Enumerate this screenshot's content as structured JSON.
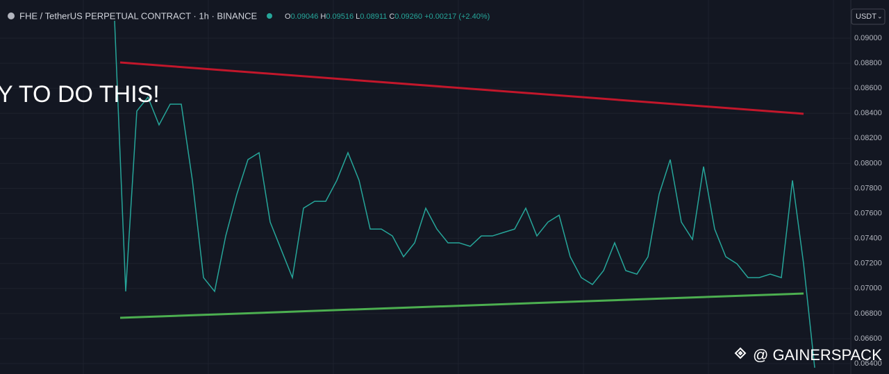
{
  "chart_data": {
    "type": "line",
    "title": "FHE / TetherUS PERPETUAL CONTRACT · 1h · BINANCE",
    "ohlc": {
      "o_label": "O",
      "o": "0.09046",
      "h_label": "H",
      "h": "0.09516",
      "l_label": "L",
      "l": "0.08911",
      "c_label": "C",
      "c": "0.09260",
      "change": "+0.00217 (+2.40%)"
    },
    "currency": "USDT",
    "overlay_text": "Y TO DO THIS!",
    "watermark": "@ GAINERSPACK",
    "categories": [
      null,
      null,
      null,
      null,
      null,
      null,
      null,
      null,
      null,
      null,
      null,
      null,
      null,
      null,
      null,
      null,
      null,
      null,
      null,
      null,
      null,
      null,
      null,
      null,
      null,
      null,
      null,
      null,
      null,
      null,
      null,
      null,
      null,
      null,
      null,
      null,
      null,
      null,
      null,
      null,
      null,
      null,
      null,
      null,
      null,
      null,
      null,
      null,
      null,
      null,
      null,
      null,
      null,
      null,
      null,
      null,
      null,
      null,
      null,
      null,
      null,
      null,
      null,
      null
    ],
    "series": [
      {
        "color": "#26a69a",
        "values": [
          0.09139,
          0.06977,
          0.08418,
          0.08529,
          0.08307,
          0.08473,
          0.08473,
          0.07864,
          0.07087,
          0.06977,
          0.0742,
          0.07753,
          0.0803,
          0.08085,
          0.07531,
          0.07309,
          0.07087,
          0.07642,
          0.07697,
          0.07697,
          0.07864,
          0.08085,
          0.07864,
          0.07475,
          0.07475,
          0.0742,
          0.07254,
          0.07365,
          0.07642,
          0.07475,
          0.07365,
          0.07365,
          0.07337,
          0.0742,
          0.0742,
          0.07448,
          0.07475,
          0.07642,
          0.0742,
          0.07531,
          0.07586,
          0.07254,
          0.07087,
          0.07032,
          0.07143,
          0.07365,
          0.07143,
          0.07115,
          0.07254,
          0.07753,
          0.0803,
          0.07531,
          0.07392,
          0.07974,
          0.07475,
          0.07254,
          0.07198,
          0.07087,
          0.07087,
          0.07115,
          0.07087,
          0.07864,
          0.07198,
          0.06367
        ]
      }
    ],
    "trendlines": [
      {
        "color": "#c2172b",
        "x": [
          0.5,
          62
        ],
        "values": [
          0.08806,
          0.08396
        ]
      },
      {
        "color": "#4caf50",
        "x": [
          0.5,
          62
        ],
        "values": [
          0.06766,
          0.0696
        ]
      }
    ],
    "ylim": [
      0.06317,
      0.09305
    ],
    "yticks": [
      {
        "value": 0.064,
        "label": "0.06400"
      },
      {
        "value": 0.066,
        "label": "0.06600"
      },
      {
        "value": 0.068,
        "label": "0.06800"
      },
      {
        "value": 0.07,
        "label": "0.07000"
      },
      {
        "value": 0.072,
        "label": "0.07200"
      },
      {
        "value": 0.074,
        "label": "0.07400"
      },
      {
        "value": 0.076,
        "label": "0.07600"
      },
      {
        "value": 0.078,
        "label": "0.07800"
      },
      {
        "value": 0.08,
        "label": "0.08000"
      },
      {
        "value": 0.082,
        "label": "0.08200"
      },
      {
        "value": 0.084,
        "label": "0.08400"
      },
      {
        "value": 0.086,
        "label": "0.08600"
      },
      {
        "value": 0.088,
        "label": "0.08800"
      },
      {
        "value": 0.09,
        "label": "0.09000"
      }
    ],
    "grid": true
  }
}
